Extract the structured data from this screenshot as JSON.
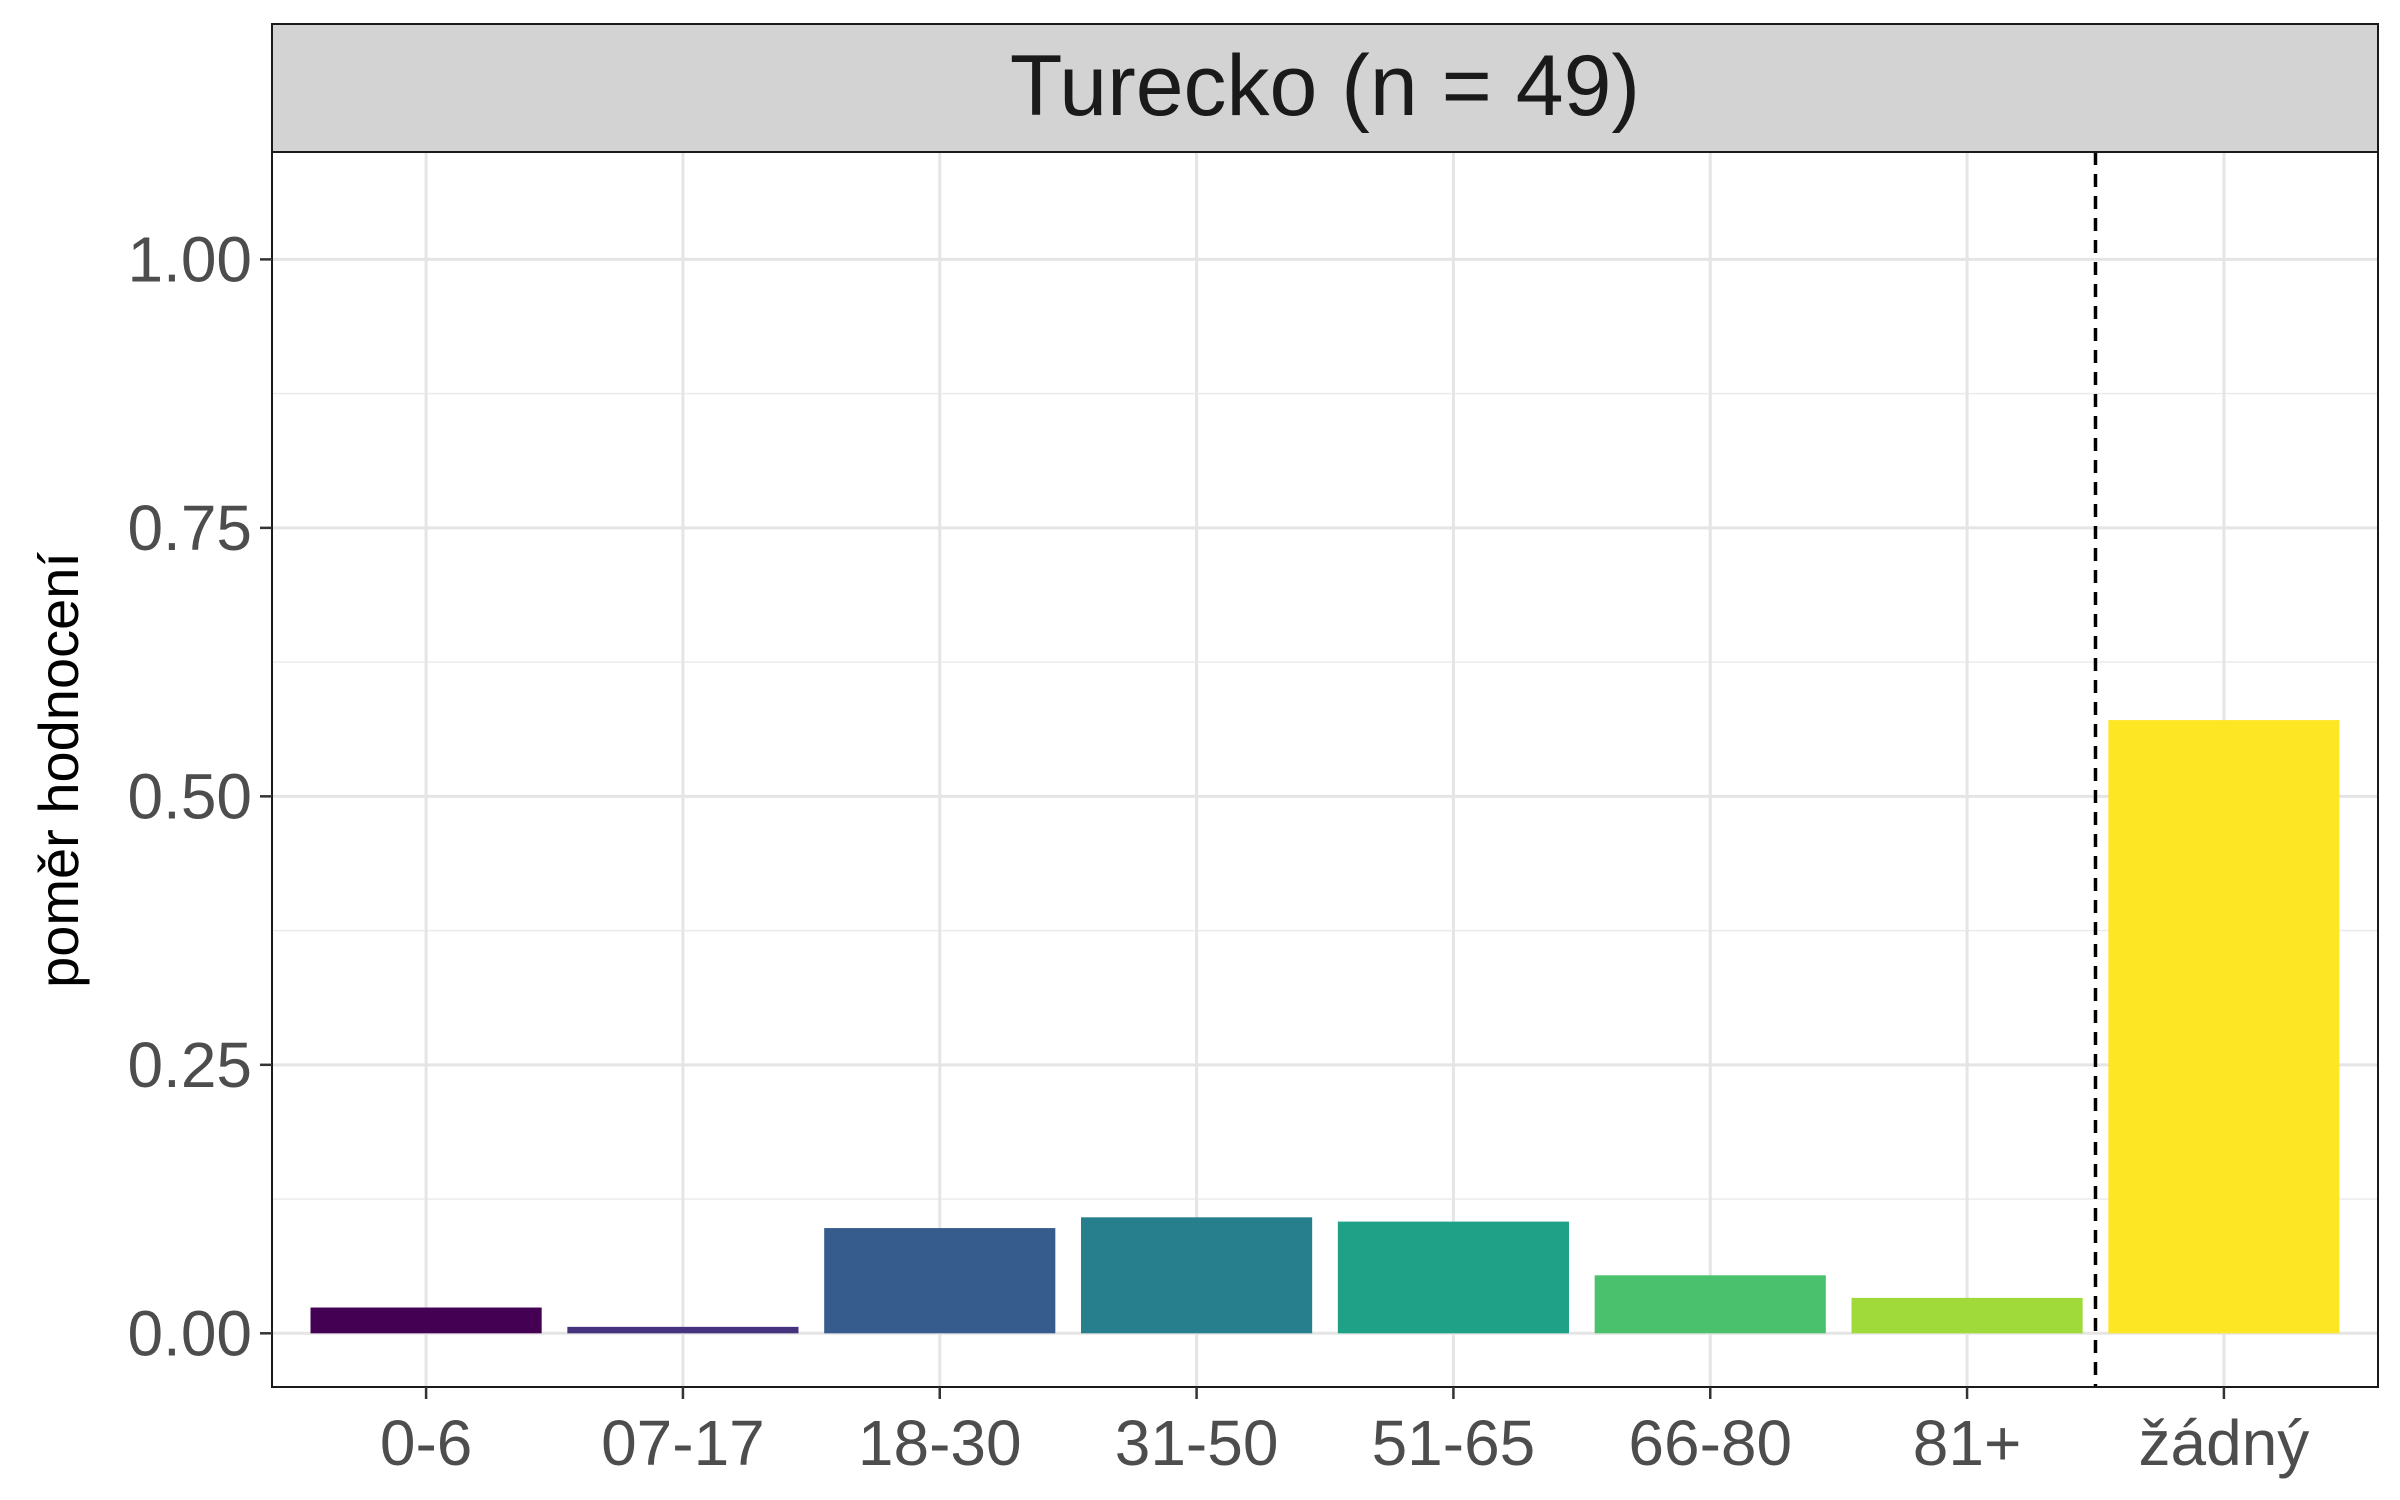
{
  "chart_data": {
    "type": "bar",
    "facet_title": "Turecko (n = 49)",
    "ylabel": "poměr hodnocení",
    "xlabel": "",
    "categories": [
      "0-6",
      "07-17",
      "18-30",
      "31-50",
      "51-65",
      "66-80",
      "81+",
      "žádný"
    ],
    "values": [
      0.024,
      0.006,
      0.098,
      0.108,
      0.104,
      0.054,
      0.033,
      0.571
    ],
    "colors": [
      "#440154",
      "#46337E",
      "#365C8D",
      "#277F8E",
      "#1FA187",
      "#4AC16D",
      "#9FDA3A",
      "#FDE725"
    ],
    "ylim": [
      -0.05,
      1.1
    ],
    "yticks": [
      0.0,
      0.25,
      0.5,
      0.75,
      1.0
    ],
    "ytick_labels": [
      "0.00",
      "0.25",
      "0.50",
      "0.75",
      "1.00"
    ],
    "separator_after_index": 6,
    "grid": true,
    "legend": "none"
  }
}
